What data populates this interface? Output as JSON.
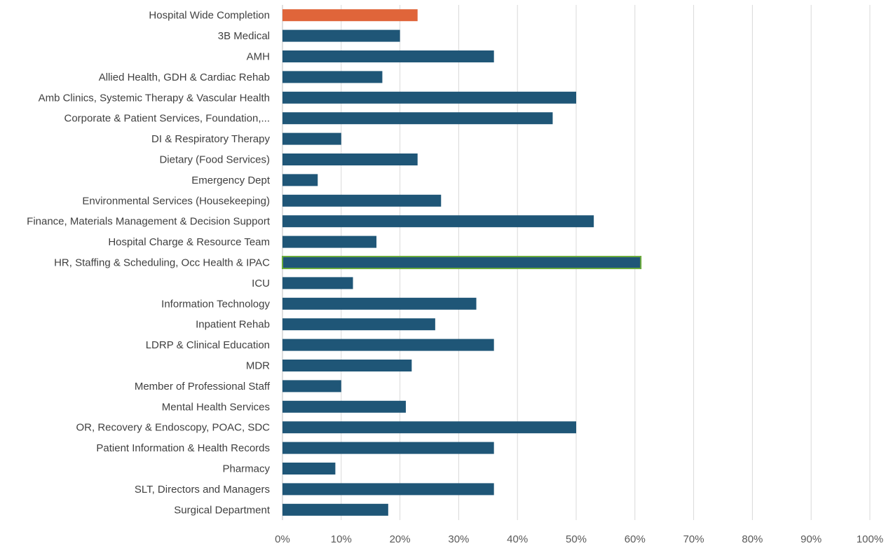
{
  "chart_data": {
    "type": "bar",
    "orientation": "horizontal",
    "title": "",
    "xlabel": "",
    "ylabel": "",
    "xlim": [
      0,
      1
    ],
    "grid": true,
    "legend": "none",
    "tick_values": [
      0,
      0.1,
      0.2,
      0.3,
      0.4,
      0.5,
      0.6,
      0.7,
      0.8,
      0.9,
      1.0
    ],
    "tick_labels": [
      "0%",
      "10%",
      "20%",
      "30%",
      "40%",
      "50%",
      "60%",
      "70%",
      "80%",
      "90%",
      "100%"
    ],
    "categories": [
      "Hospital Wide Completion",
      "3B Medical",
      "AMH",
      "Allied Health, GDH & Cardiac Rehab",
      "Amb Clinics, Systemic Therapy & Vascular Health",
      "Corporate & Patient Services, Foundation,...",
      "DI & Respiratory Therapy",
      "Dietary (Food Services)",
      "Emergency Dept",
      "Environmental Services (Housekeeping)",
      "Finance, Materials Management & Decision Support",
      "Hospital Charge & Resource Team",
      "HR, Staffing & Scheduling, Occ Health & IPAC",
      "ICU",
      "Information Technology",
      "Inpatient Rehab",
      "LDRP & Clinical Education",
      "MDR",
      "Member of Professional Staff",
      "Mental Health Services",
      "OR, Recovery & Endoscopy, POAC, SDC",
      "Patient Information & Health Records",
      "Pharmacy",
      "SLT, Directors and Managers",
      "Surgical Department"
    ],
    "values": [
      0.23,
      0.2,
      0.36,
      0.17,
      0.5,
      0.46,
      0.1,
      0.23,
      0.06,
      0.27,
      0.53,
      0.16,
      0.61,
      0.12,
      0.33,
      0.26,
      0.36,
      0.22,
      0.1,
      0.21,
      0.5,
      0.36,
      0.09,
      0.36,
      0.18
    ],
    "colors": {
      "default": "#1f5677",
      "highlight": "#e0653a",
      "outline_highlight": "#6bab3c",
      "gridline": "#d9d9d9",
      "label": "#404040"
    },
    "highlight_index": 0,
    "outlined_index": 12
  }
}
